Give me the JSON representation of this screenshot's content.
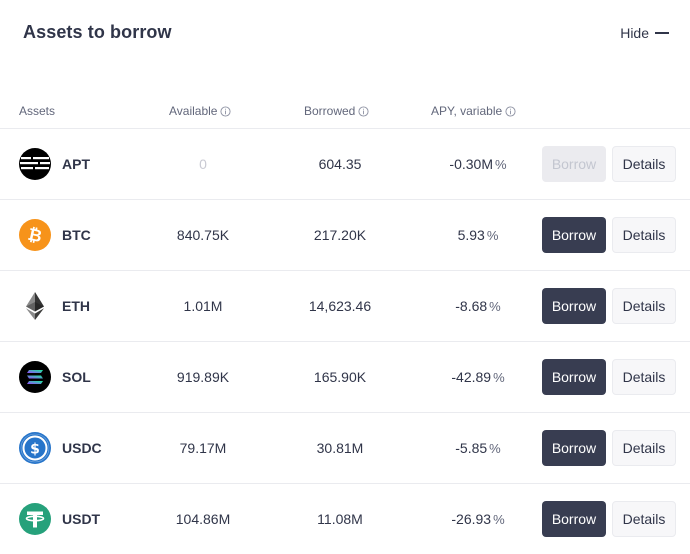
{
  "header": {
    "title": "Assets to borrow",
    "hide_label": "Hide"
  },
  "columns": {
    "assets": "Assets",
    "available": "Available",
    "borrowed": "Borrowed",
    "apy": "APY, variable"
  },
  "rows": [
    {
      "symbol": "APT",
      "icon": "apt-icon",
      "available": "0",
      "borrowed": "604.35",
      "apy": "-0.30M",
      "apy_unit": "%",
      "borrow_label": "Borrow",
      "details_label": "Details",
      "borrow_disabled": true
    },
    {
      "symbol": "BTC",
      "icon": "btc-icon",
      "available": "840.75K",
      "borrowed": "217.20K",
      "apy": "5.93",
      "apy_unit": "%",
      "borrow_label": "Borrow",
      "details_label": "Details",
      "borrow_disabled": false
    },
    {
      "symbol": "ETH",
      "icon": "eth-icon",
      "available": "1.01M",
      "borrowed": "14,623.46",
      "apy": "-8.68",
      "apy_unit": "%",
      "borrow_label": "Borrow",
      "details_label": "Details",
      "borrow_disabled": false
    },
    {
      "symbol": "SOL",
      "icon": "sol-icon",
      "available": "919.89K",
      "borrowed": "165.90K",
      "apy": "-42.89",
      "apy_unit": "%",
      "borrow_label": "Borrow",
      "details_label": "Details",
      "borrow_disabled": false
    },
    {
      "symbol": "USDC",
      "icon": "usdc-icon",
      "available": "79.17M",
      "borrowed": "30.81M",
      "apy": "-5.85",
      "apy_unit": "%",
      "borrow_label": "Borrow",
      "details_label": "Details",
      "borrow_disabled": false
    },
    {
      "symbol": "USDT",
      "icon": "usdt-icon",
      "available": "104.86M",
      "borrowed": "11.08M",
      "apy": "-26.93",
      "apy_unit": "%",
      "borrow_label": "Borrow",
      "details_label": "Details",
      "borrow_disabled": false
    }
  ],
  "colors": {
    "primary_button": "#383d51",
    "text": "#303549",
    "muted_text": "#62677b",
    "divider": "#eaebef",
    "btc": "#f7931a",
    "usdc": "#2775ca",
    "usdt": "#26a17b"
  }
}
